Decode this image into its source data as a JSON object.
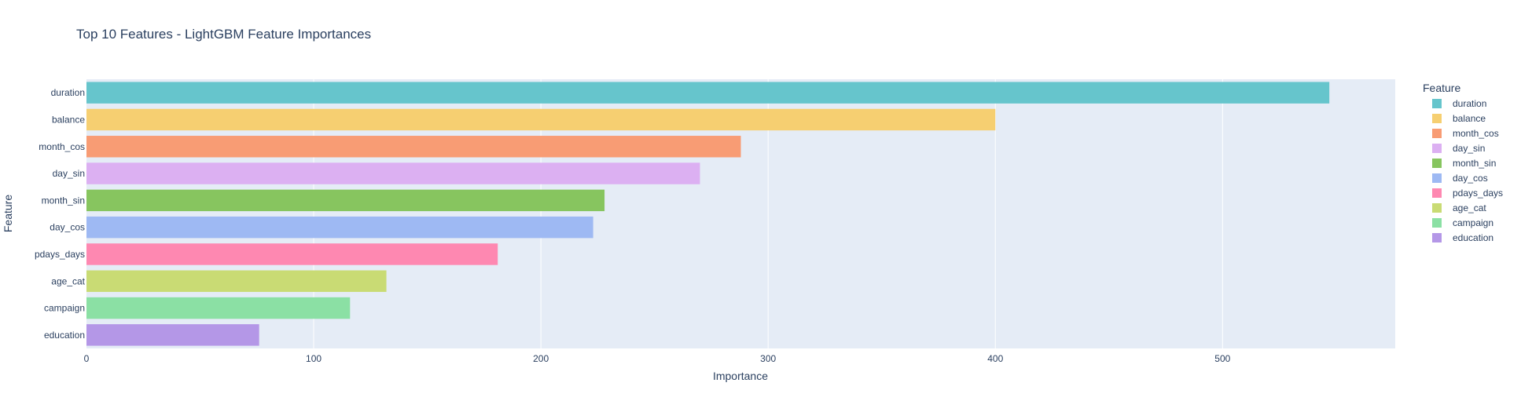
{
  "chart_data": {
    "type": "bar",
    "orientation": "horizontal",
    "title": "Top 10 Features - LightGBM Feature Importances",
    "xlabel": "Importance",
    "ylabel": "Feature",
    "xlim": [
      0,
      576
    ],
    "xticks": [
      0,
      100,
      200,
      300,
      400,
      500
    ],
    "grid": true,
    "background": "#e5ecf6",
    "legend": {
      "title": "Feature",
      "placement": "right"
    },
    "categories": [
      "duration",
      "balance",
      "month_cos",
      "day_sin",
      "month_sin",
      "day_cos",
      "pdays_days",
      "age_cat",
      "campaign",
      "education"
    ],
    "values": [
      547,
      400,
      288,
      270,
      228,
      223,
      181,
      132,
      116,
      76
    ],
    "colors": [
      "#66c5cc",
      "#f6cf71",
      "#f89c74",
      "#dcb0f2",
      "#87c55f",
      "#9eb9f3",
      "#fe88b1",
      "#c9db74",
      "#8be0a4",
      "#b497e7"
    ]
  }
}
